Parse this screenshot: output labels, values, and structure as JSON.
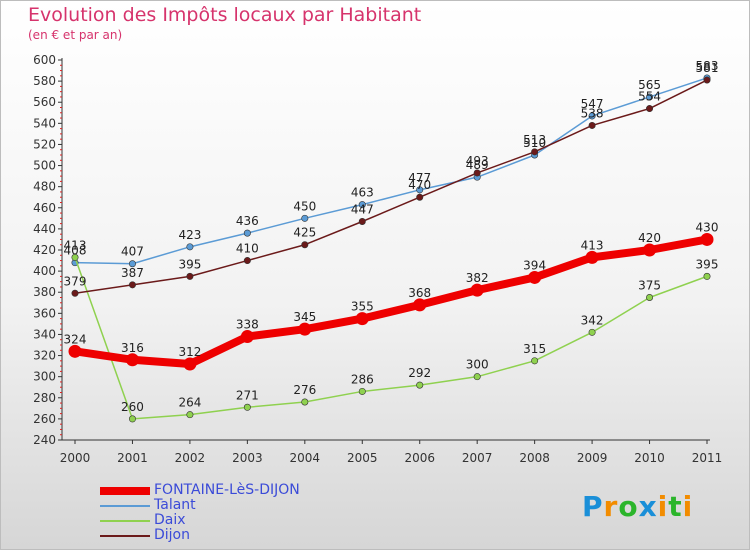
{
  "chart_data": {
    "type": "line",
    "title": "Evolution des Impôts locaux par Habitant",
    "subtitle": "(en € et par an)",
    "x": [
      "2000",
      "2001",
      "2002",
      "2003",
      "2004",
      "2005",
      "2006",
      "2007",
      "2008",
      "2009",
      "2010",
      "2011"
    ],
    "ylim": [
      240,
      600
    ],
    "yticks": [
      240,
      260,
      280,
      300,
      320,
      340,
      360,
      380,
      400,
      420,
      440,
      460,
      480,
      500,
      520,
      540,
      560,
      580,
      600
    ],
    "series": [
      {
        "name": "FONTAINE-LèS-DIJON",
        "color": "#ee0000",
        "values": [
          324,
          316,
          312,
          338,
          345,
          355,
          368,
          382,
          394,
          413,
          420,
          430
        ]
      },
      {
        "name": "Talant",
        "color": "#5b9bd5",
        "values": [
          408,
          407,
          423,
          436,
          450,
          463,
          477,
          489,
          510,
          547,
          565,
          583
        ]
      },
      {
        "name": "Daix",
        "color": "#8fd14f",
        "values": [
          413,
          260,
          264,
          271,
          276,
          286,
          292,
          300,
          315,
          342,
          375,
          395
        ]
      },
      {
        "name": "Dijon",
        "color": "#6b1a1a",
        "values": [
          379,
          387,
          395,
          410,
          425,
          447,
          470,
          493,
          513,
          538,
          554,
          581
        ]
      }
    ],
    "grid": false,
    "legend_position": "bottom-left"
  },
  "logo": {
    "text": "Proxiti",
    "letters": [
      "P",
      "r",
      "o",
      "x",
      "i",
      "t",
      "i"
    ],
    "colors": [
      "#1a8fd8",
      "#f28c00",
      "#2bb52b",
      "#1a8fd8",
      "#f28c00",
      "#2bb52b",
      "#f28c00"
    ]
  }
}
